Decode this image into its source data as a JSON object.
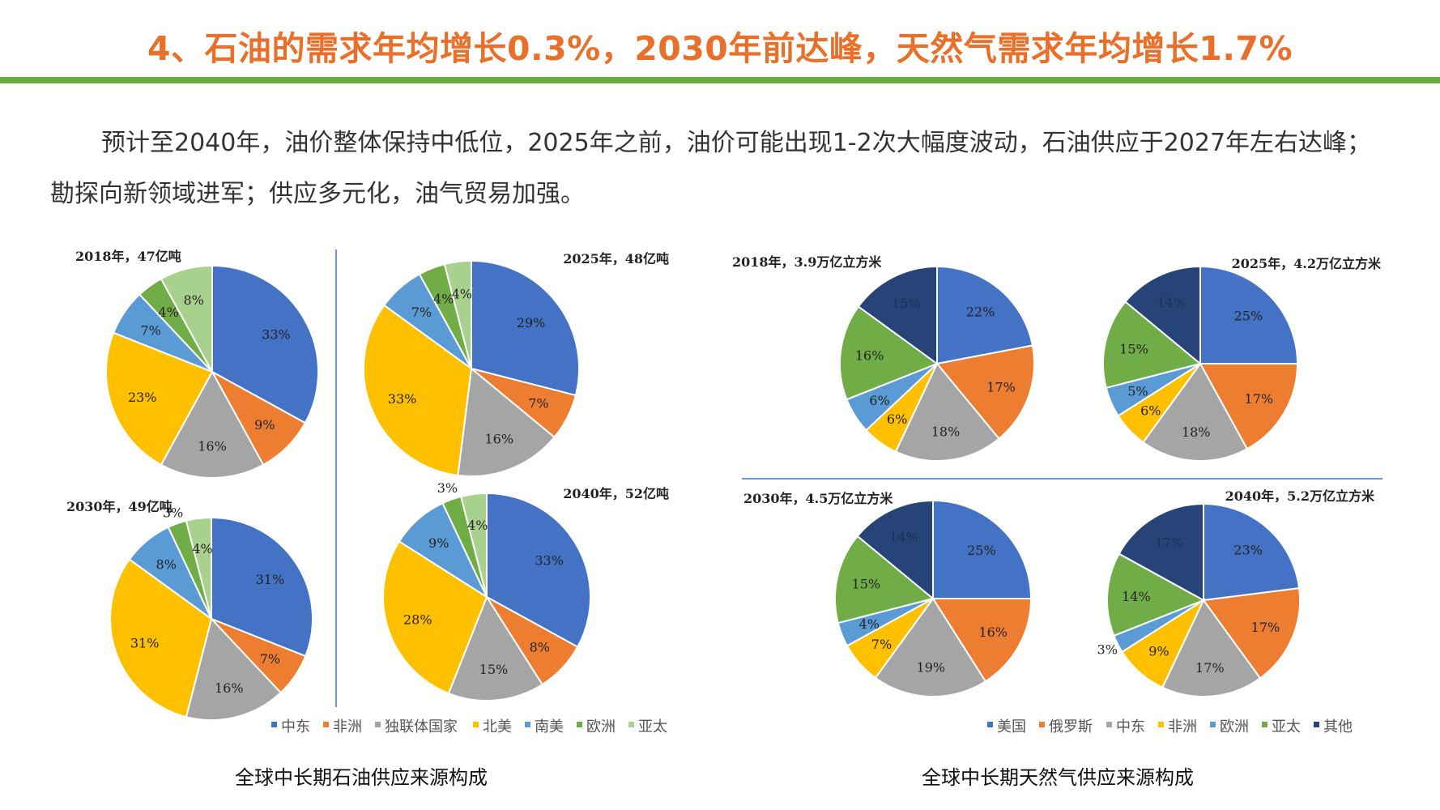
{
  "title": "4、石油的需求年均增长0.3%，2030年前达峰，天然气需求年均增长1.7%",
  "paragraph": "预计至2040年，油价整体保持中低位，2025年之前，油价可能出现1-2次大幅度波动，石油供应于2027年左右达峰；勘探向新领域进军；供应多元化，油气贸易加强。",
  "colors": {
    "title": "#E8702A",
    "bar": "#6AAE3E",
    "divider": "#4472C4"
  },
  "chart_data": [
    {
      "type": "pie",
      "group": "oil",
      "caption": "全球中长期石油供应来源构成",
      "legend": {
        "position": "bottom",
        "entries": [
          "中东",
          "非洲",
          "独联体国家",
          "北美",
          "南美",
          "欧洲",
          "亚太"
        ]
      },
      "colors": [
        "#4472C4",
        "#ED7D31",
        "#A5A5A5",
        "#FFC000",
        "#5B9BD5",
        "#70AD47",
        "#A9D18E"
      ],
      "pies": [
        {
          "title": "2018年，47亿吨",
          "values": [
            33,
            9,
            16,
            23,
            7,
            4,
            8
          ]
        },
        {
          "title": "2025年，48亿吨",
          "values": [
            29,
            7,
            16,
            33,
            7,
            4,
            4
          ]
        },
        {
          "title": "2030年，49亿吨",
          "values": [
            31,
            7,
            16,
            31,
            8,
            3,
            4
          ]
        },
        {
          "title": "2040年，52亿吨",
          "values": [
            33,
            8,
            15,
            28,
            9,
            3,
            4
          ]
        }
      ]
    },
    {
      "type": "pie",
      "group": "gas",
      "caption": "全球中长期天然气供应来源构成",
      "legend": {
        "position": "bottom",
        "entries": [
          "美国",
          "俄罗斯",
          "中东",
          "非洲",
          "欧洲",
          "亚太",
          "其他"
        ]
      },
      "colors": [
        "#4472C4",
        "#ED7D31",
        "#A5A5A5",
        "#FFC000",
        "#5B9BD5",
        "#70AD47",
        "#264478"
      ],
      "pies": [
        {
          "title": "2018年，3.9万亿立方米",
          "values": [
            22,
            17,
            18,
            6,
            6,
            16,
            15
          ]
        },
        {
          "title": "2025年，4.2万亿立方米",
          "values": [
            25,
            17,
            18,
            6,
            5,
            15,
            14
          ]
        },
        {
          "title": "2030年，4.5万亿立方米",
          "values": [
            25,
            16,
            19,
            7,
            4,
            15,
            14
          ]
        },
        {
          "title": "2040年，5.2万亿立方米",
          "values": [
            23,
            17,
            17,
            9,
            3,
            14,
            17
          ]
        }
      ]
    }
  ]
}
